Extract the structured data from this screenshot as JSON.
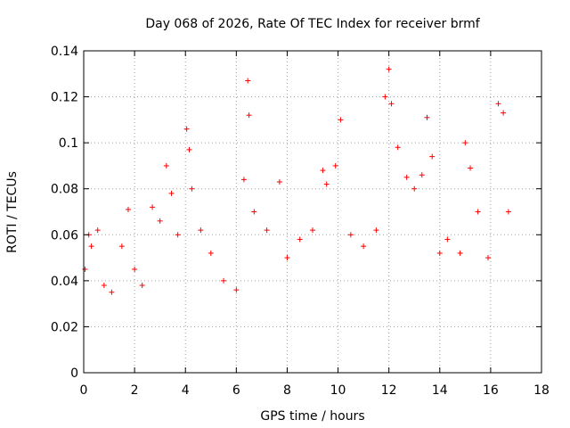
{
  "chart_data": {
    "type": "scatter",
    "title": "Day 068 of 2026, Rate Of TEC Index for receiver brmf",
    "xlabel": "GPS time / hours",
    "ylabel": "ROTI / TECUs",
    "xlim": [
      0,
      18
    ],
    "ylim": [
      0,
      0.14
    ],
    "x_ticks": [
      "0",
      "2",
      "4",
      "6",
      "8",
      "10",
      "12",
      "14",
      "16",
      "18"
    ],
    "y_ticks": [
      "0",
      "0.02",
      "0.04",
      "0.06",
      "0.08",
      "0.1",
      "0.12",
      "0.14"
    ],
    "grid": true,
    "marker": "+",
    "color": "#ff0000",
    "series": [
      {
        "name": "ROTI",
        "x": [
          0.05,
          0.2,
          0.3,
          0.55,
          0.8,
          1.1,
          1.5,
          1.75,
          2.0,
          2.3,
          2.7,
          3.0,
          3.25,
          3.45,
          3.7,
          4.05,
          4.15,
          4.25,
          4.6,
          5.0,
          5.5,
          6.0,
          6.3,
          6.45,
          6.5,
          6.7,
          7.2,
          7.7,
          8.0,
          8.5,
          9.0,
          9.4,
          9.55,
          9.9,
          10.1,
          10.5,
          11.0,
          11.5,
          11.85,
          12.0,
          12.1,
          12.35,
          12.7,
          13.0,
          13.3,
          13.5,
          13.7,
          14.0,
          14.3,
          14.8,
          15.0,
          15.2,
          15.5,
          15.9,
          16.3,
          16.5,
          16.7
        ],
        "values": [
          0.045,
          0.06,
          0.055,
          0.062,
          0.038,
          0.035,
          0.055,
          0.071,
          0.045,
          0.038,
          0.072,
          0.066,
          0.09,
          0.078,
          0.06,
          0.106,
          0.097,
          0.08,
          0.062,
          0.052,
          0.04,
          0.036,
          0.084,
          0.127,
          0.112,
          0.07,
          0.062,
          0.083,
          0.05,
          0.058,
          0.062,
          0.088,
          0.082,
          0.09,
          0.11,
          0.06,
          0.055,
          0.062,
          0.12,
          0.132,
          0.117,
          0.098,
          0.085,
          0.08,
          0.086,
          0.111,
          0.094,
          0.052,
          0.058,
          0.052,
          0.1,
          0.089,
          0.07,
          0.05,
          0.117,
          0.113,
          0.07
        ]
      }
    ]
  }
}
